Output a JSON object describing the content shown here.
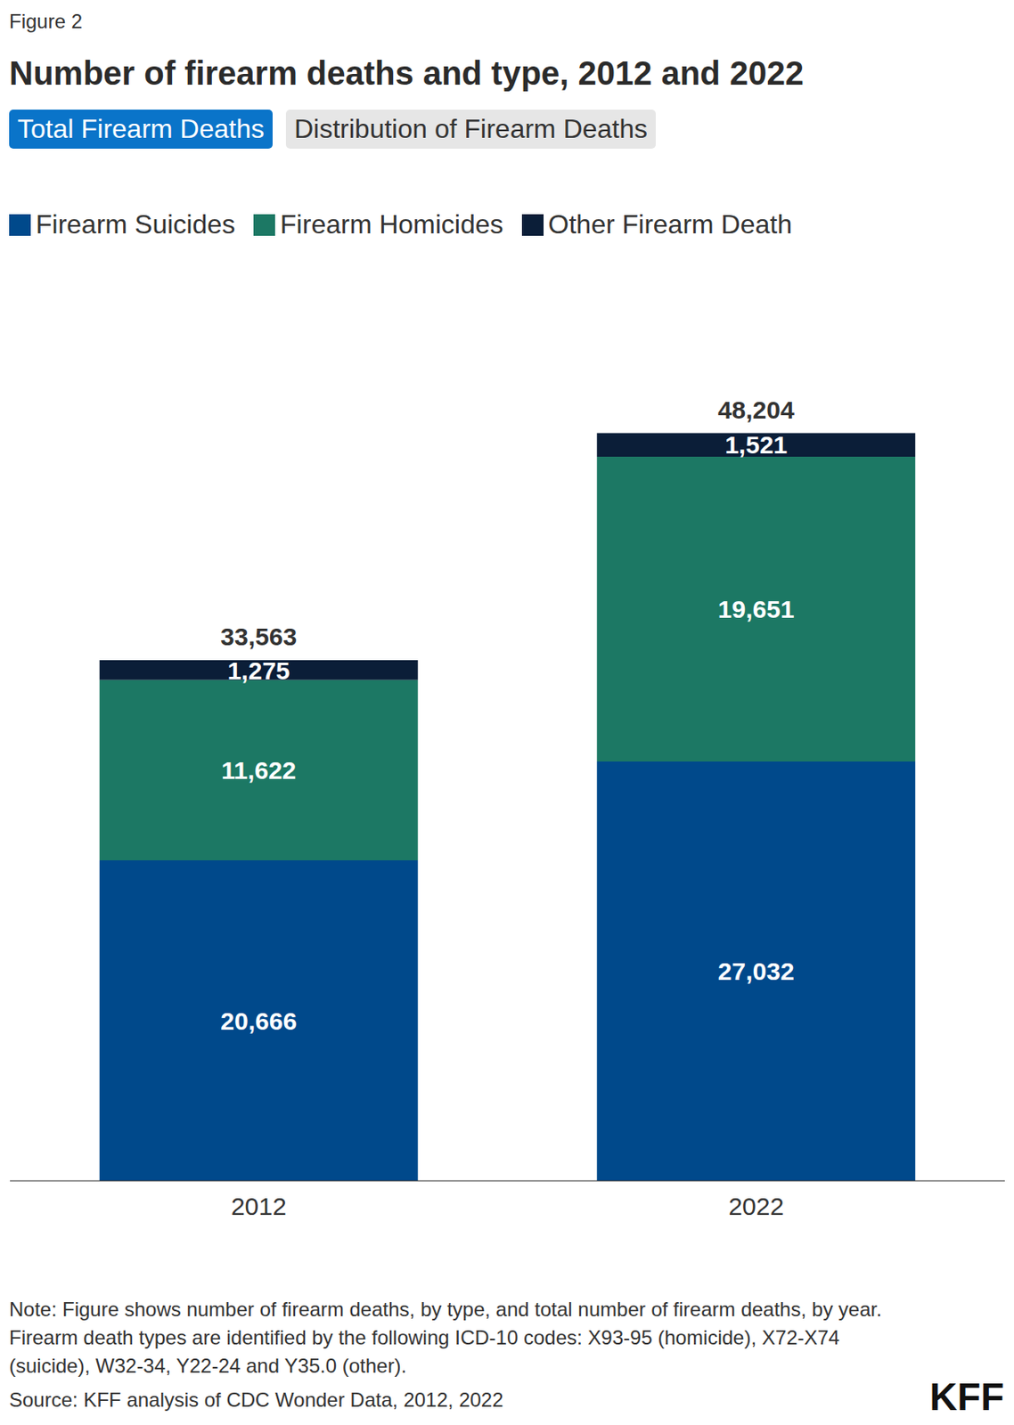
{
  "chart_data": {
    "type": "bar",
    "figure_label": "Figure 2",
    "title": "Number of firearm deaths and type, 2012 and 2022",
    "toggle": [
      "Total Firearm Deaths",
      "Distribution of Firearm Deaths"
    ],
    "categories": [
      "2012",
      "2022"
    ],
    "stacked": true,
    "data_labels": true,
    "tick_labels": "x",
    "ylim": [
      0,
      50000
    ],
    "series": [
      {
        "name": "Firearm Suicides",
        "color": "#00498b",
        "values": [
          20666,
          27032
        ],
        "value_labels": [
          "20,666",
          "27,032"
        ]
      },
      {
        "name": "Firearm Homicides",
        "color": "#1c7864",
        "values": [
          11622,
          19651
        ],
        "value_labels": [
          "11,622",
          "19,651"
        ]
      },
      {
        "name": "Other Firearm Death",
        "color": "#0b1e38",
        "values": [
          1275,
          1521
        ],
        "value_labels": [
          "1,275",
          "1,521"
        ]
      }
    ],
    "totals": [
      33563,
      48204
    ],
    "total_labels": [
      "33,563",
      "48,204"
    ],
    "note": "Note: Figure shows number of firearm deaths, by type, and total number of firearm deaths, by year. Firearm death types are identified by the following ICD-10 codes: X93-95 (homicide), X72-X74 (suicide), W32-34, Y22-24 and Y35.0 (other).",
    "source": "Source: KFF analysis of CDC Wonder Data, 2012, 2022",
    "logo": "KFF"
  }
}
